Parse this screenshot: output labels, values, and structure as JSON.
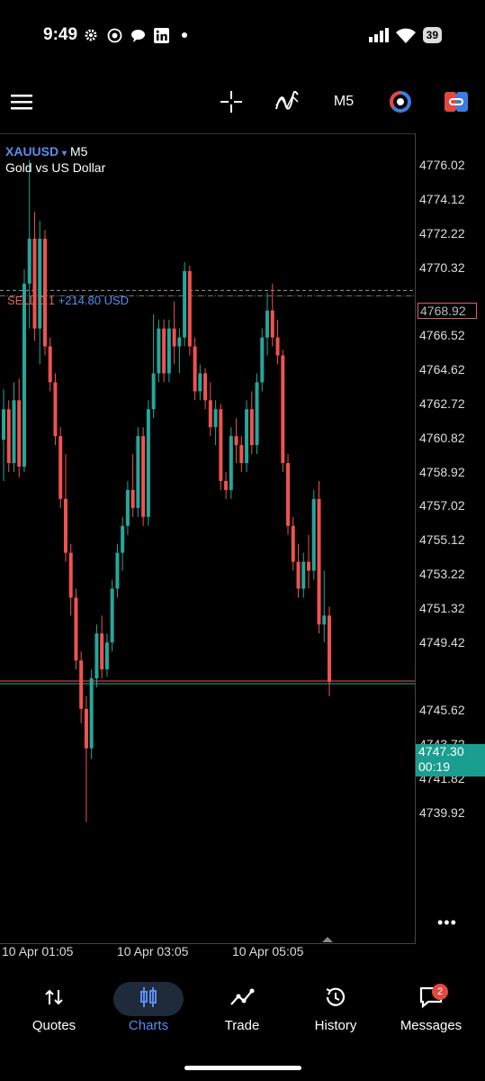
{
  "status_bar": {
    "time": "9:49",
    "battery": "39"
  },
  "toolbar": {
    "timeframe": "M5"
  },
  "chart": {
    "symbol": "XAUUSD",
    "symbol_arrow": "▾",
    "timeframe": "M5",
    "description": "Gold vs US Dollar",
    "sell_position": "SELL 0.1",
    "sell_profit": "+214.80 USD",
    "sell_price": "4768.92",
    "current_price": "4747.30",
    "countdown": "00:19",
    "price_ticks": [
      "4776.02",
      "4774.12",
      "4772.22",
      "4770.32",
      "4766.52",
      "4764.62",
      "4762.72",
      "4760.82",
      "4758.92",
      "4757.02",
      "4755.12",
      "4753.22",
      "4751.32",
      "4749.42",
      "4745.62",
      "4743.72",
      "4741.82",
      "4739.92"
    ],
    "time_ticks": [
      "10 Apr 01:05",
      "10 Apr 03:05",
      "10 Apr 05:05"
    ],
    "more": "•••"
  },
  "nav": {
    "items": [
      {
        "label": "Quotes",
        "icon": "sort-arrows-icon"
      },
      {
        "label": "Charts",
        "icon": "candles-icon"
      },
      {
        "label": "Trade",
        "icon": "trend-line-icon"
      },
      {
        "label": "History",
        "icon": "history-icon"
      },
      {
        "label": "Messages",
        "icon": "message-icon"
      }
    ],
    "badge": "2"
  },
  "colors": {
    "bull": "#26a69a",
    "bear": "#ef5350",
    "accent": "#5b8def"
  },
  "chart_data": {
    "type": "candlestick",
    "symbol": "XAUUSD",
    "ylim": [
      4739.0,
      4777.5
    ],
    "candles": [
      {
        "o": 4760.8,
        "h": 4763.6,
        "l": 4758.5,
        "c": 4762.5
      },
      {
        "o": 4762.5,
        "h": 4763.0,
        "l": 4759.0,
        "c": 4759.5
      },
      {
        "o": 4759.5,
        "h": 4764.0,
        "l": 4759.0,
        "c": 4763.0
      },
      {
        "o": 4763.0,
        "h": 4764.2,
        "l": 4758.7,
        "c": 4759.3
      },
      {
        "o": 4759.3,
        "h": 4770.3,
        "l": 4759.0,
        "c": 4769.5
      },
      {
        "o": 4769.5,
        "h": 4776.4,
        "l": 4767.0,
        "c": 4772.0
      },
      {
        "o": 4772.0,
        "h": 4773.5,
        "l": 4766.3,
        "c": 4767.0
      },
      {
        "o": 4767.0,
        "h": 4773.0,
        "l": 4765.0,
        "c": 4772.0
      },
      {
        "o": 4772.0,
        "h": 4772.5,
        "l": 4765.5,
        "c": 4766.0
      },
      {
        "o": 4766.0,
        "h": 4766.5,
        "l": 4763.5,
        "c": 4764.0
      },
      {
        "o": 4764.0,
        "h": 4764.5,
        "l": 4760.5,
        "c": 4761.0
      },
      {
        "o": 4761.0,
        "h": 4761.5,
        "l": 4757.0,
        "c": 4757.5
      },
      {
        "o": 4757.5,
        "h": 4760.0,
        "l": 4754.0,
        "c": 4754.5
      },
      {
        "o": 4754.5,
        "h": 4755.0,
        "l": 4751.0,
        "c": 4752.0
      },
      {
        "o": 4752.0,
        "h": 4752.5,
        "l": 4748.0,
        "c": 4748.5
      },
      {
        "o": 4748.5,
        "h": 4749.0,
        "l": 4745.0,
        "c": 4745.8
      },
      {
        "o": 4745.8,
        "h": 4746.5,
        "l": 4739.5,
        "c": 4743.6
      },
      {
        "o": 4743.6,
        "h": 4748.0,
        "l": 4743.0,
        "c": 4747.5
      },
      {
        "o": 4747.5,
        "h": 4750.5,
        "l": 4747.0,
        "c": 4750.0
      },
      {
        "o": 4750.0,
        "h": 4751.0,
        "l": 4747.5,
        "c": 4748.0
      },
      {
        "o": 4748.0,
        "h": 4750.0,
        "l": 4747.6,
        "c": 4749.5
      },
      {
        "o": 4749.5,
        "h": 4753.0,
        "l": 4749.0,
        "c": 4752.5
      },
      {
        "o": 4752.5,
        "h": 4755.0,
        "l": 4752.0,
        "c": 4754.5
      },
      {
        "o": 4754.5,
        "h": 4756.5,
        "l": 4753.5,
        "c": 4756.0
      },
      {
        "o": 4756.0,
        "h": 4758.5,
        "l": 4755.5,
        "c": 4758.0
      },
      {
        "o": 4758.0,
        "h": 4760.0,
        "l": 4756.5,
        "c": 4757.0
      },
      {
        "o": 4757.0,
        "h": 4761.5,
        "l": 4756.5,
        "c": 4761.0
      },
      {
        "o": 4761.0,
        "h": 4761.5,
        "l": 4756.0,
        "c": 4756.5
      },
      {
        "o": 4756.5,
        "h": 4763.0,
        "l": 4756.0,
        "c": 4762.5
      },
      {
        "o": 4762.5,
        "h": 4767.8,
        "l": 4762.0,
        "c": 4764.5
      },
      {
        "o": 4764.5,
        "h": 4767.5,
        "l": 4764.0,
        "c": 4767.0
      },
      {
        "o": 4767.0,
        "h": 4767.5,
        "l": 4764.0,
        "c": 4764.5
      },
      {
        "o": 4764.5,
        "h": 4767.5,
        "l": 4764.0,
        "c": 4767.0
      },
      {
        "o": 4767.0,
        "h": 4768.5,
        "l": 4765.0,
        "c": 4766.0
      },
      {
        "o": 4766.0,
        "h": 4767.0,
        "l": 4764.5,
        "c": 4766.5
      },
      {
        "o": 4766.5,
        "h": 4770.7,
        "l": 4766.0,
        "c": 4770.2
      },
      {
        "o": 4770.2,
        "h": 4770.5,
        "l": 4765.5,
        "c": 4766.0
      },
      {
        "o": 4766.0,
        "h": 4766.5,
        "l": 4763.0,
        "c": 4763.5
      },
      {
        "o": 4763.5,
        "h": 4765.0,
        "l": 4763.0,
        "c": 4764.5
      },
      {
        "o": 4764.5,
        "h": 4764.8,
        "l": 4762.5,
        "c": 4763.0
      },
      {
        "o": 4763.0,
        "h": 4764.0,
        "l": 4761.0,
        "c": 4761.5
      },
      {
        "o": 4761.5,
        "h": 4763.0,
        "l": 4760.5,
        "c": 4762.5
      },
      {
        "o": 4762.5,
        "h": 4762.8,
        "l": 4758.0,
        "c": 4758.5
      },
      {
        "o": 4758.5,
        "h": 4759.0,
        "l": 4757.5,
        "c": 4758.0
      },
      {
        "o": 4758.0,
        "h": 4761.5,
        "l": 4757.5,
        "c": 4761.0
      },
      {
        "o": 4761.0,
        "h": 4762.0,
        "l": 4759.5,
        "c": 4760.5
      },
      {
        "o": 4760.5,
        "h": 4761.0,
        "l": 4759.0,
        "c": 4759.5
      },
      {
        "o": 4759.5,
        "h": 4763.0,
        "l": 4759.0,
        "c": 4762.5
      },
      {
        "o": 4762.5,
        "h": 4763.5,
        "l": 4760.0,
        "c": 4760.5
      },
      {
        "o": 4760.5,
        "h": 4764.5,
        "l": 4760.0,
        "c": 4764.0
      },
      {
        "o": 4764.0,
        "h": 4767.0,
        "l": 4763.5,
        "c": 4766.5
      },
      {
        "o": 4766.5,
        "h": 4769.0,
        "l": 4765.5,
        "c": 4768.0
      },
      {
        "o": 4768.0,
        "h": 4769.5,
        "l": 4766.0,
        "c": 4766.5
      },
      {
        "o": 4766.5,
        "h": 4767.5,
        "l": 4765.0,
        "c": 4765.5
      },
      {
        "o": 4765.5,
        "h": 4765.8,
        "l": 4759.0,
        "c": 4759.5
      },
      {
        "o": 4759.5,
        "h": 4760.0,
        "l": 4755.5,
        "c": 4756.0
      },
      {
        "o": 4756.0,
        "h": 4756.5,
        "l": 4753.5,
        "c": 4754.0
      },
      {
        "o": 4754.0,
        "h": 4755.0,
        "l": 4752.0,
        "c": 4752.5
      },
      {
        "o": 4752.5,
        "h": 4754.5,
        "l": 4752.0,
        "c": 4754.0
      },
      {
        "o": 4754.0,
        "h": 4755.5,
        "l": 4752.5,
        "c": 4753.5
      },
      {
        "o": 4753.5,
        "h": 4758.0,
        "l": 4753.0,
        "c": 4757.5
      },
      {
        "o": 4757.5,
        "h": 4758.5,
        "l": 4750.0,
        "c": 4750.5
      },
      {
        "o": 4750.5,
        "h": 4753.5,
        "l": 4749.5,
        "c": 4751.0
      },
      {
        "o": 4751.0,
        "h": 4751.5,
        "l": 4746.5,
        "c": 4747.3
      }
    ],
    "current_price": 4747.3,
    "sell_entry": 4768.92,
    "price_ticks": [
      4776.02,
      4774.12,
      4772.22,
      4770.32,
      4766.52,
      4764.62,
      4762.72,
      4760.82,
      4758.92,
      4757.02,
      4755.12,
      4753.22,
      4751.32,
      4749.42,
      4745.62,
      4743.72,
      4741.82,
      4739.92
    ],
    "time_ticks": [
      "10 Apr 01:05",
      "10 Apr 03:05",
      "10 Apr 05:05"
    ]
  }
}
